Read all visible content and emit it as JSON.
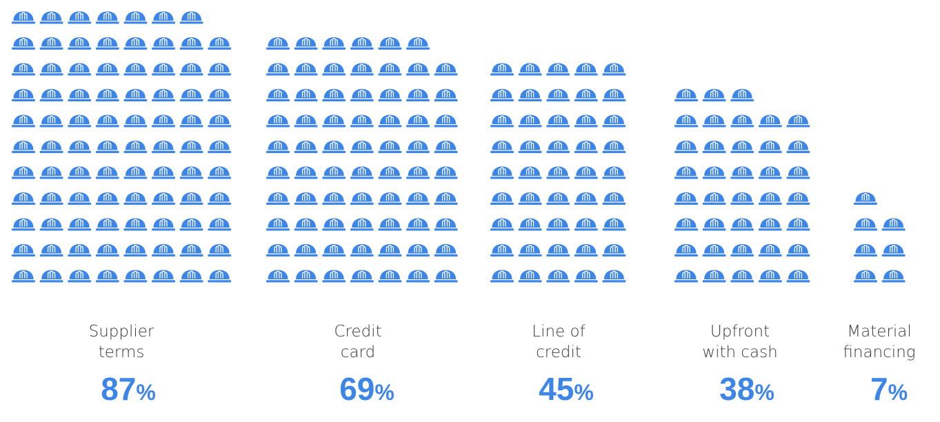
{
  "colors": {
    "accent": "#3d85e6",
    "label": "#3a3a3a"
  },
  "icon": "hard-hat-icon",
  "chart_data": {
    "type": "pictograph",
    "unit": "%",
    "categories": [
      {
        "label_lines": [
          "Supplier",
          "terms"
        ],
        "value": 87,
        "percent_text": "87",
        "percent_sign": "%",
        "icons": 87
      },
      {
        "label_lines": [
          "Credit",
          "card"
        ],
        "value": 69,
        "percent_text": "69",
        "percent_sign": "%",
        "icons": 69
      },
      {
        "label_lines": [
          "Line of",
          "credit"
        ],
        "value": 45,
        "percent_text": "45",
        "percent_sign": "%",
        "icons": 45
      },
      {
        "label_lines": [
          "Upfront",
          "with cash"
        ],
        "value": 38,
        "percent_text": "38",
        "percent_sign": "%",
        "icons": 38
      },
      {
        "label_lines": [
          "Material",
          "financing"
        ],
        "value": 7,
        "percent_text": "7",
        "percent_sign": "%",
        "icons": 7
      }
    ]
  }
}
